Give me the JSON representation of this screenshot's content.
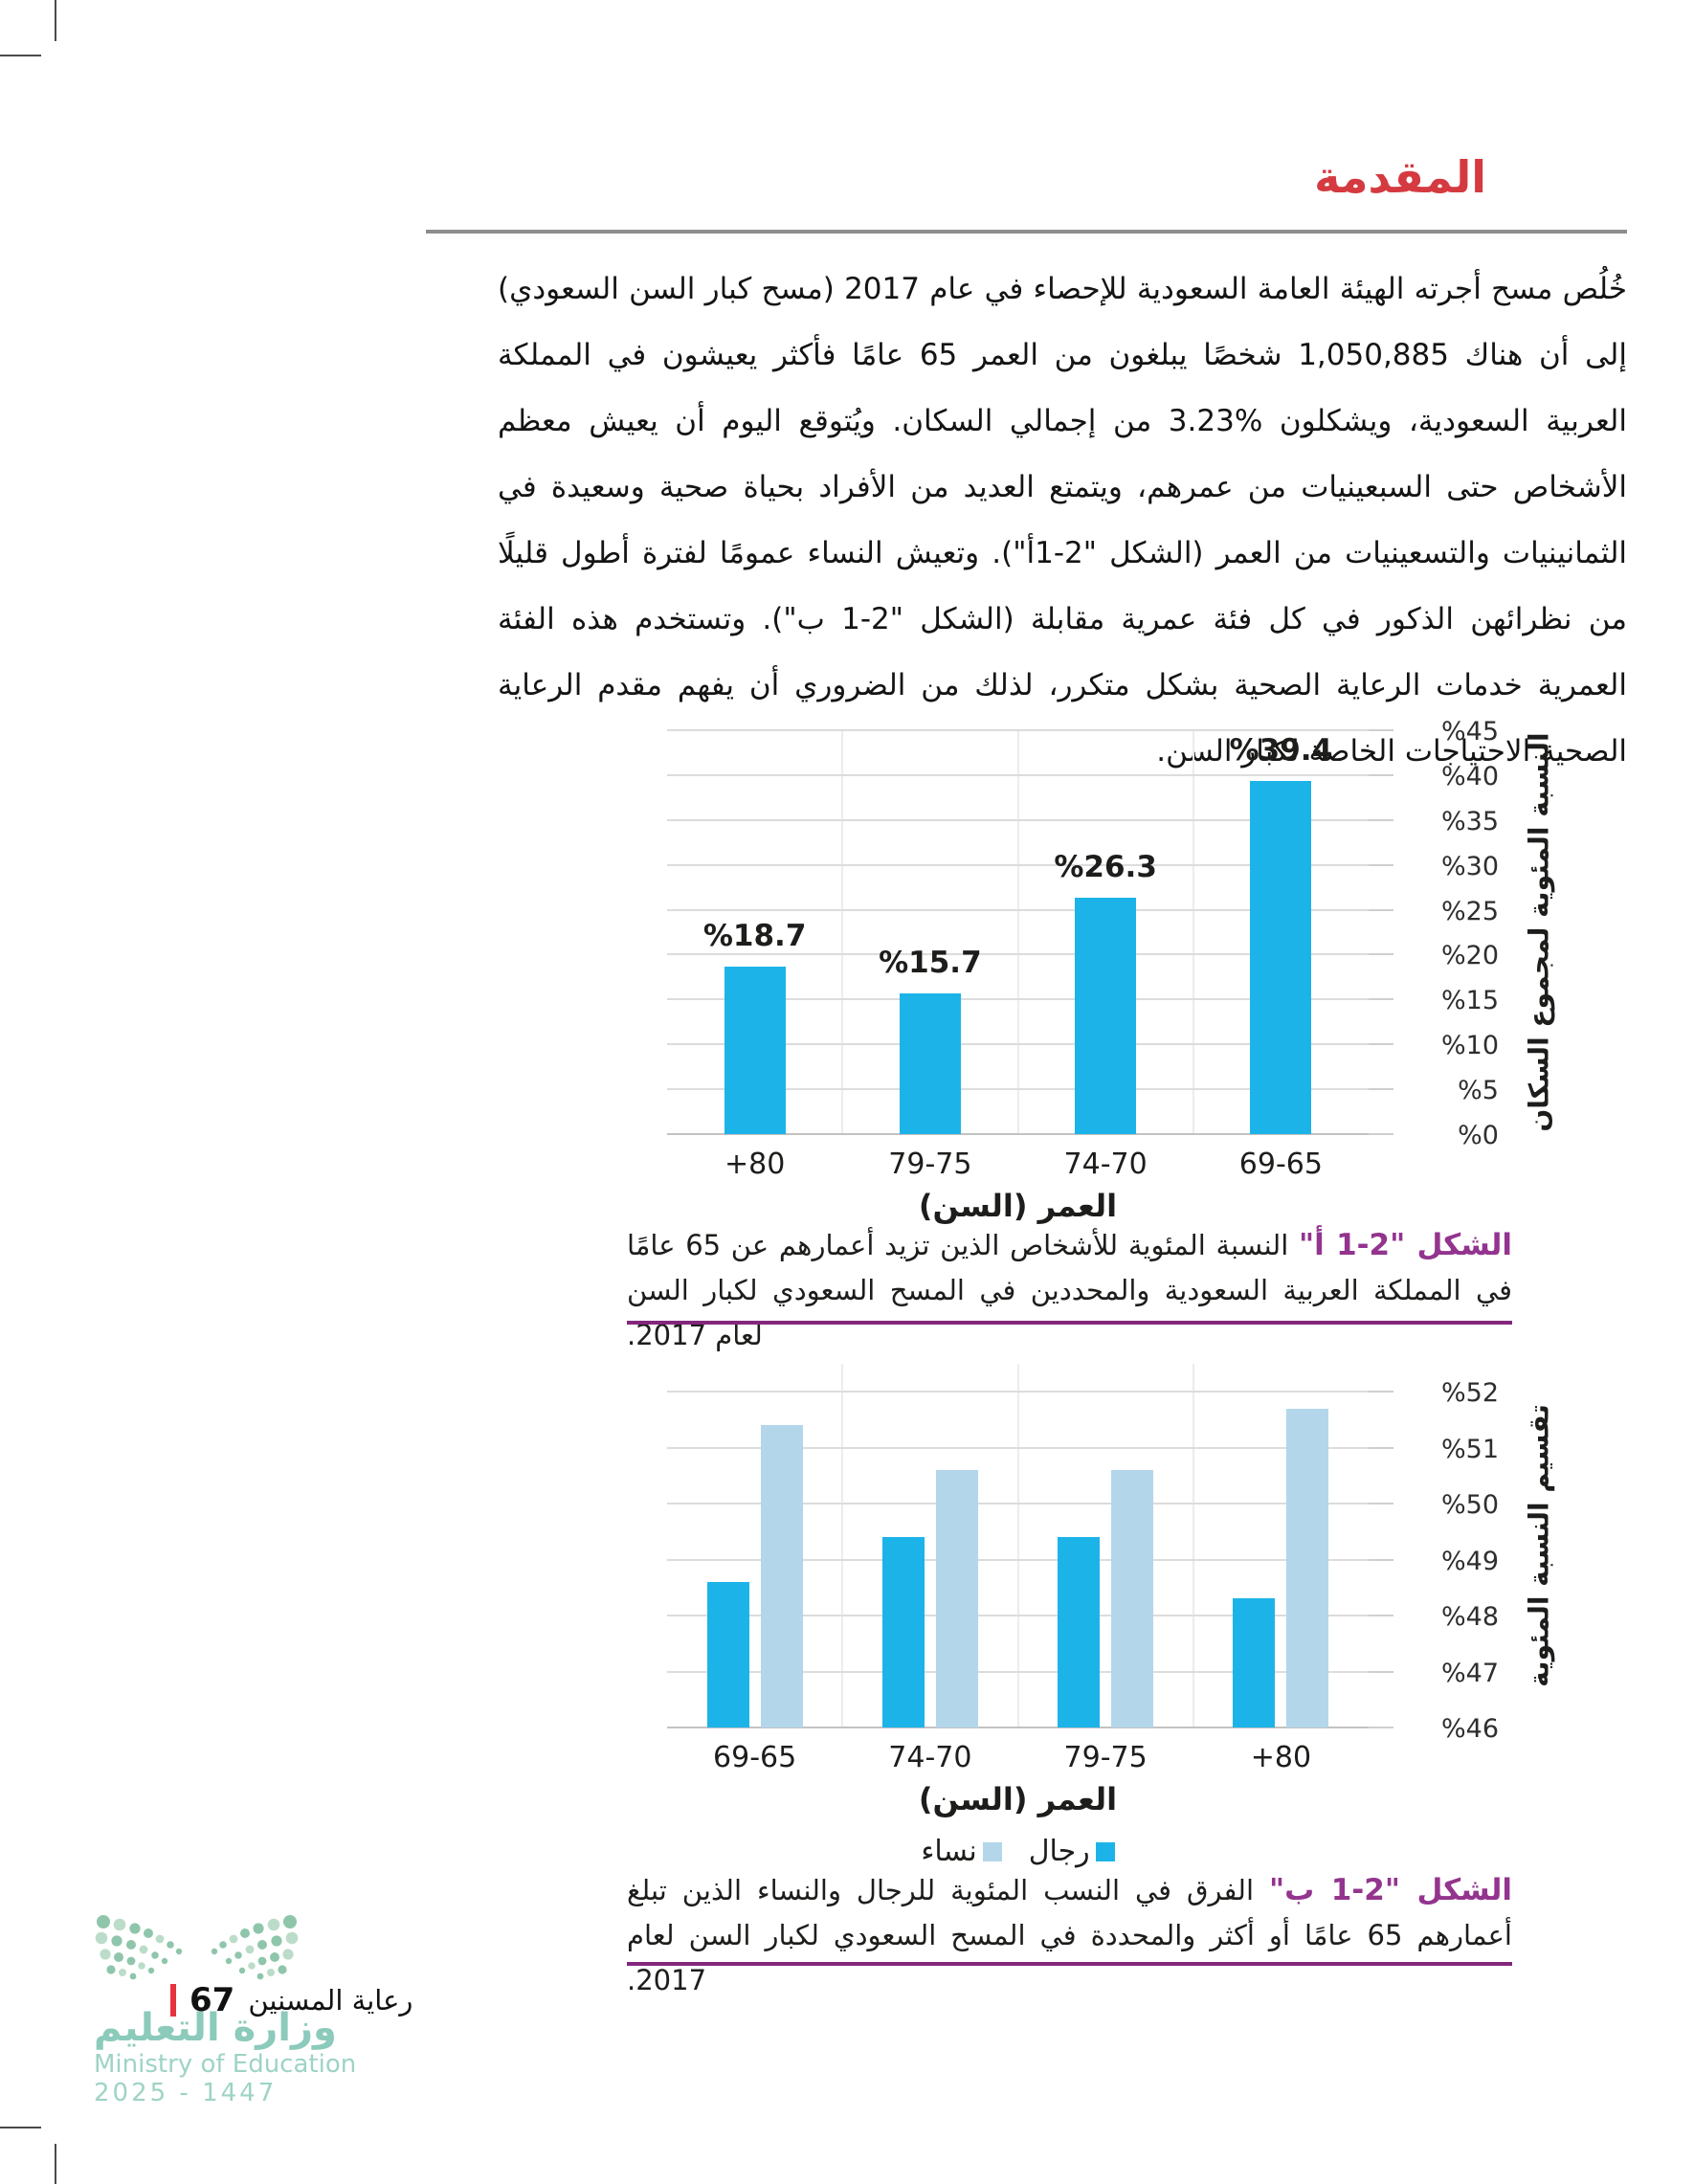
{
  "title": "المقدمة",
  "paragraph": "خُلُص مسح أجرته الهيئة العامة السعودية للإحصاء في عام 2017 (مسح كبار السن السعودي) إلى أن هناك 1,050,885 شخصًا يبلغون من العمر 65 عامًا فأكثر يعيشون في المملكة العربية السعودية، ويشكلون %3.23 من إجمالي السكان. ويُتوقع اليوم أن يعيش معظم الأشخاص حتى السبعينيات من عمرهم، ويتمتع العديد من الأفراد بحياة صحية وسعيدة في الثمانينيات والتسعينيات من العمر (الشكل \"2-1أ\"). وتعيش النساء عمومًا لفترة أطول قليلًا من نظرائهن الذكور في كل فئة عمرية مقابلة (الشكل \"2-1 ب\"). وتستخدم هذه الفئة العمرية خدمات الرعاية الصحية بشكل متكرر، لذلك من الضروري أن يفهم مقدم الرعاية الصحية الاحتياجات الخاصة لكبار السن.",
  "chart_data": [
    {
      "type": "bar",
      "categories": [
        "+80",
        "79-75",
        "74-70",
        "69-65"
      ],
      "values": [
        18.7,
        15.7,
        26.3,
        39.4
      ],
      "value_labels": [
        "%18.7",
        "%15.7",
        "%26.3",
        "%39.4"
      ],
      "title": "",
      "xlabel": "العمر (السن)",
      "ylabel": "النسبة المئوية لمجموع السكان",
      "ylim": [
        0,
        45
      ],
      "ytick_step": 5,
      "ytick_labels": [
        "%45",
        "%40",
        "%35",
        "%30",
        "%25",
        "%20",
        "%15",
        "%10",
        "%5",
        "%0"
      ],
      "grid": true,
      "bar_color": "#1cb4e8"
    },
    {
      "type": "bar",
      "categories": [
        "69-65",
        "74-70",
        "79-75",
        "+80"
      ],
      "series": [
        {
          "name": "رجال",
          "color": "#1cb4e8",
          "values": [
            48.6,
            49.4,
            49.4,
            48.3
          ]
        },
        {
          "name": "نساء",
          "color": "#b3d6eb",
          "values": [
            51.4,
            50.6,
            50.6,
            51.7
          ]
        }
      ],
      "title": "",
      "xlabel": "العمر (السن)",
      "ylabel": "تقسيم النسبة المئوية",
      "ylim": [
        46,
        52
      ],
      "ytick_step": 1,
      "ytick_labels": [
        "%52",
        "%51",
        "%50",
        "%49",
        "%48",
        "%47",
        "%46"
      ],
      "grid": true,
      "legend_position": "bottom"
    }
  ],
  "legend": [
    {
      "label": "نساء",
      "color": "#b3d6eb"
    },
    {
      "label": "رجال",
      "color": "#1cb4e8"
    }
  ],
  "captions": {
    "fig_a_label": "الشكل \"2-1 أ\"",
    "fig_a_text": "النسبة المئوية للأشخاص الذين تزيد أعمارهم عن 65 عامًا في المملكة العربية السعودية والمحددين في المسح السعودي لكبار السن لعام 2017.",
    "fig_b_label": "الشكل \"2-1 ب\"",
    "fig_b_text": "الفرق في النسب المئوية للرجال والنساء الذين تبلغ أعمارهم 65 عامًا أو أكثر والمحددة في المسح السعودي لكبار السن لعام 2017."
  },
  "footer": {
    "section": "رعاية المسنين",
    "page_number": "67",
    "ministry_ar": "وزارة التعليم",
    "ministry_en": "Ministry of Education",
    "years": "2025 - 1447"
  },
  "colors": {
    "accent_red": "#d43a40",
    "figure_purple": "#93348e",
    "caption_rule_purple": "#82277c",
    "bar_cyan": "#1cb4e8",
    "bar_lightblue": "#b3d6eb",
    "gridline_gray": "#dcdcdc",
    "footer_teal": "#8ccabb",
    "footer_teal_light": "#9ed3c6",
    "logo_green_dark": "#8fc6ab",
    "logo_green_light": "#bcdcca",
    "footer_red_divider": "#e6333e"
  }
}
